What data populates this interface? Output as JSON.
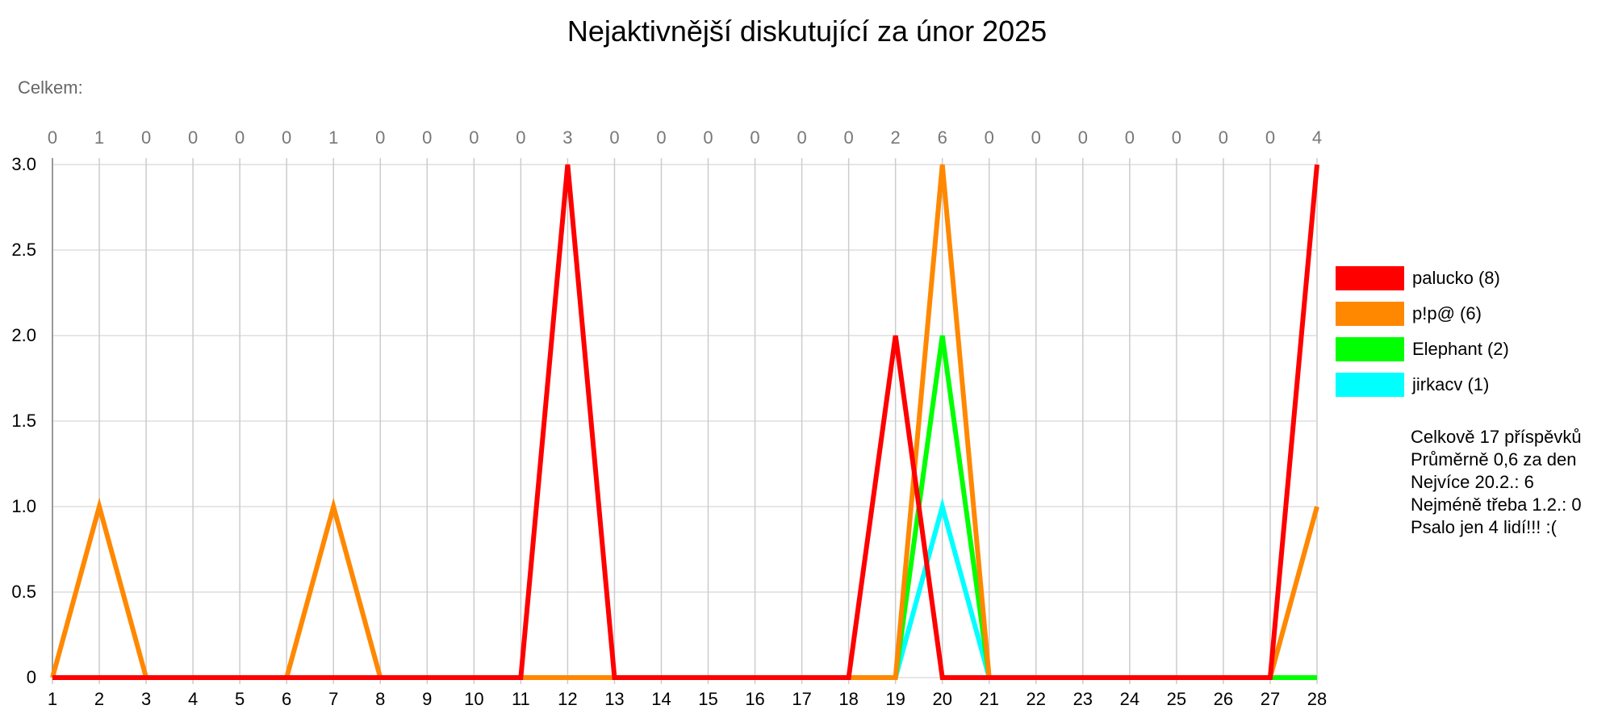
{
  "title": "Nejaktivnější diskutující za únor 2025",
  "subtitle": "Celkem:",
  "chart_data": {
    "type": "line",
    "x": [
      1,
      2,
      3,
      4,
      5,
      6,
      7,
      8,
      9,
      10,
      11,
      12,
      13,
      14,
      15,
      16,
      17,
      18,
      19,
      20,
      21,
      22,
      23,
      24,
      25,
      26,
      27,
      28
    ],
    "xlim": [
      1,
      28
    ],
    "ylim": [
      0,
      3
    ],
    "yticks": [
      0,
      0.5,
      1.0,
      1.5,
      2.0,
      2.5,
      3.0
    ],
    "ytick_labels": [
      "0",
      "0.5",
      "1.0",
      "1.5",
      "2.0",
      "2.5",
      "3.0"
    ],
    "top_totals": [
      0,
      1,
      0,
      0,
      0,
      0,
      1,
      0,
      0,
      0,
      0,
      3,
      0,
      0,
      0,
      0,
      0,
      0,
      2,
      6,
      0,
      0,
      0,
      0,
      0,
      0,
      0,
      4
    ],
    "grid": true,
    "legend_position": "right",
    "series": [
      {
        "name": "jirkacv (1)",
        "color": "#00ffff",
        "values": [
          0,
          0,
          0,
          0,
          0,
          0,
          0,
          0,
          0,
          0,
          0,
          0,
          0,
          0,
          0,
          0,
          0,
          0,
          0,
          1,
          0,
          0,
          0,
          0,
          0,
          0,
          0,
          0
        ]
      },
      {
        "name": "Elephant (2)",
        "color": "#00ff00",
        "values": [
          0,
          0,
          0,
          0,
          0,
          0,
          0,
          0,
          0,
          0,
          0,
          0,
          0,
          0,
          0,
          0,
          0,
          0,
          0,
          2,
          0,
          0,
          0,
          0,
          0,
          0,
          0,
          0
        ]
      },
      {
        "name": "p!p@ (6)",
        "color": "#ff8800",
        "values": [
          0,
          1,
          0,
          0,
          0,
          0,
          1,
          0,
          0,
          0,
          0,
          0,
          0,
          0,
          0,
          0,
          0,
          0,
          0,
          3,
          0,
          0,
          0,
          0,
          0,
          0,
          0,
          1
        ]
      },
      {
        "name": "palucko (8)",
        "color": "#ff0000",
        "values": [
          0,
          0,
          0,
          0,
          0,
          0,
          0,
          0,
          0,
          0,
          0,
          3,
          0,
          0,
          0,
          0,
          0,
          0,
          2,
          0,
          0,
          0,
          0,
          0,
          0,
          0,
          0,
          3
        ]
      }
    ],
    "legend": [
      {
        "label": "palucko (8)",
        "color": "#ff0000"
      },
      {
        "label": "p!p@ (6)",
        "color": "#ff8800"
      },
      {
        "label": "Elephant (2)",
        "color": "#00ff00"
      },
      {
        "label": "jirkacv (1)",
        "color": "#00ffff"
      }
    ]
  },
  "stats": [
    "Celkově 17 příspěvků",
    "Průměrně 0,6 za den",
    "Nejvíce 20.2.: 6",
    "Nejméně třeba 1.2.: 0",
    "Psalo jen 4 lidí!!! :("
  ]
}
